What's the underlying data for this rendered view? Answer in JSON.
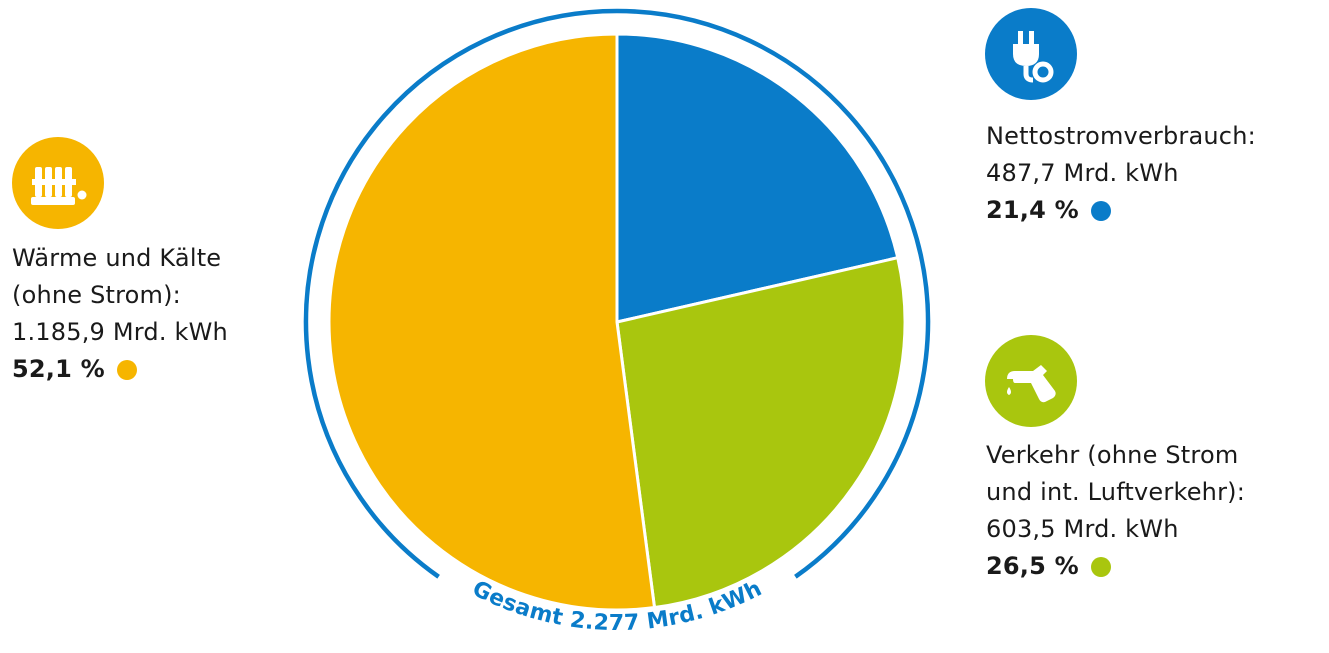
{
  "colors": {
    "heat": "#f6b500",
    "electricity": "#0a7cc9",
    "transport": "#a9c60e",
    "ring": "#0a7cc9"
  },
  "chart_data": {
    "type": "pie",
    "total_label": "Gesamt 2.277 Mrd. kWh",
    "slices": [
      {
        "key": "electricity",
        "label": "Nettostromverbrauch:",
        "value": 487.7,
        "value_text": "487,7 Mrd. kWh",
        "percent": 21.4,
        "percent_text": "21,4 %",
        "color": "#0a7cc9",
        "icon": "power-plug-icon"
      },
      {
        "key": "transport",
        "label_lines": [
          "Verkehr (ohne Strom",
          "und int. Luftverkehr):"
        ],
        "value": 603.5,
        "value_text": "603,5 Mrd. kWh",
        "percent": 26.5,
        "percent_text": "26,5 %",
        "color": "#a9c60e",
        "icon": "fuel-nozzle-icon"
      },
      {
        "key": "heat",
        "label_lines": [
          "Wärme und Kälte",
          "(ohne Strom):"
        ],
        "value": 1185.9,
        "value_text": "1.185,9 Mrd. kWh",
        "percent": 52.1,
        "percent_text": "52,1 %",
        "color": "#f6b500",
        "icon": "radiator-icon"
      }
    ]
  }
}
